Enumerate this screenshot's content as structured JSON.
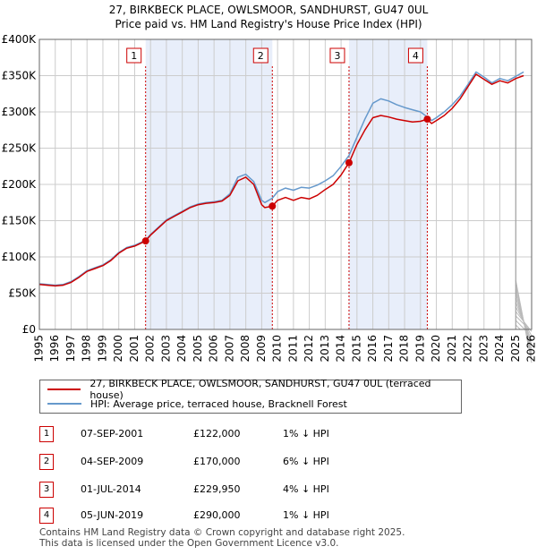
{
  "title_line1": "27, BIRKBECK PLACE, OWLSMOOR, SANDHURST, GU47 0UL",
  "title_line2": "Price paid vs. HM Land Registry's House Price Index (HPI)",
  "legend": {
    "series1": "27, BIRKBECK PLACE, OWLSMOOR, SANDHURST, GU47 0UL (terraced house)",
    "series2": "HPI: Average price, terraced house, Bracknell Forest"
  },
  "colors": {
    "property": "#cc0000",
    "hpi": "#6699cc",
    "shade": "#e8eefa",
    "grid": "#cccccc"
  },
  "transactions": [
    {
      "num": "1",
      "date": "07-SEP-2001",
      "price": "£122,000",
      "hpi": "1% ↓ HPI"
    },
    {
      "num": "2",
      "date": "04-SEP-2009",
      "price": "£170,000",
      "hpi": "6% ↓ HPI"
    },
    {
      "num": "3",
      "date": "01-JUL-2014",
      "price": "£229,950",
      "hpi": "4% ↓ HPI"
    },
    {
      "num": "4",
      "date": "05-JUN-2019",
      "price": "£290,000",
      "hpi": "1% ↓ HPI"
    }
  ],
  "footer_line1": "Contains HM Land Registry data © Crown copyright and database right 2025.",
  "footer_line2": "This data is licensed under the Open Government Licence v3.0.",
  "chart_data": {
    "type": "line",
    "title": "27, BIRKBECK PLACE, OWLSMOOR, SANDHURST, GU47 0UL",
    "subtitle": "Price paid vs. HM Land Registry's House Price Index (HPI)",
    "xlim": [
      1995,
      2026
    ],
    "ylim": [
      0,
      400000
    ],
    "x_ticks": [
      "1995",
      "1996",
      "1997",
      "1998",
      "1999",
      "2000",
      "2001",
      "2002",
      "2003",
      "2004",
      "2005",
      "2006",
      "2007",
      "2008",
      "2009",
      "2010",
      "2011",
      "2012",
      "2013",
      "2014",
      "2015",
      "2016",
      "2017",
      "2018",
      "2019",
      "2020",
      "2021",
      "2022",
      "2023",
      "2024",
      "2025",
      "2026"
    ],
    "y_ticks": [
      {
        "value": 0,
        "label": "£0"
      },
      {
        "value": 50000,
        "label": "£50K"
      },
      {
        "value": 100000,
        "label": "£100K"
      },
      {
        "value": 150000,
        "label": "£150K"
      },
      {
        "value": 200000,
        "label": "£200K"
      },
      {
        "value": 250000,
        "label": "£250K"
      },
      {
        "value": 300000,
        "label": "£300K"
      },
      {
        "value": 350000,
        "label": "£350K"
      },
      {
        "value": 400000,
        "label": "£400K"
      }
    ],
    "shaded_periods": [
      [
        2001.69,
        2009.67
      ],
      [
        2014.5,
        2019.43
      ]
    ],
    "future_hatch_from": 2025.0,
    "sale_markers": [
      {
        "label": "1",
        "x": 2001.69,
        "y": 122000
      },
      {
        "label": "2",
        "x": 2009.67,
        "y": 170000
      },
      {
        "label": "3",
        "x": 2014.5,
        "y": 229950
      },
      {
        "label": "4",
        "x": 2019.43,
        "y": 290000
      }
    ],
    "series": [
      {
        "name": "27, BIRKBECK PLACE, OWLSMOOR, SANDHURST, GU47 0UL (terraced house)",
        "x": [
          1995,
          1995.5,
          1996,
          1996.5,
          1997,
          1997.5,
          1998,
          1998.5,
          1999,
          1999.5,
          2000,
          2000.5,
          2001,
          2001.69,
          2002,
          2002.5,
          2003,
          2003.5,
          2004,
          2004.5,
          2005,
          2005.5,
          2006,
          2006.5,
          2007,
          2007.5,
          2008,
          2008.5,
          2009,
          2009.2,
          2009.67,
          2010,
          2010.5,
          2011,
          2011.5,
          2012,
          2012.5,
          2013,
          2013.5,
          2014,
          2014.5,
          2015,
          2015.5,
          2016,
          2016.5,
          2017,
          2017.5,
          2018,
          2018.5,
          2019,
          2019.43,
          2019.7,
          2020,
          2020.5,
          2021,
          2021.5,
          2022,
          2022.5,
          2023,
          2023.5,
          2024,
          2024.5,
          2025,
          2025.5
        ],
        "values": [
          62000,
          61000,
          60000,
          61000,
          65000,
          72000,
          80000,
          84000,
          88000,
          95000,
          105000,
          112000,
          115000,
          122000,
          130000,
          140000,
          150000,
          156000,
          162000,
          168000,
          172000,
          174000,
          175000,
          177000,
          185000,
          205000,
          210000,
          200000,
          172000,
          168000,
          170000,
          178000,
          182000,
          178000,
          182000,
          180000,
          185000,
          193000,
          200000,
          213000,
          229950,
          255000,
          275000,
          292000,
          295000,
          293000,
          290000,
          288000,
          286000,
          287000,
          290000,
          284000,
          288000,
          295000,
          305000,
          318000,
          335000,
          352000,
          345000,
          338000,
          343000,
          340000,
          346000,
          350000
        ]
      },
      {
        "name": "HPI: Average price, terraced house, Bracknell Forest",
        "x": [
          1995,
          1995.5,
          1996,
          1996.5,
          1997,
          1997.5,
          1998,
          1998.5,
          1999,
          1999.5,
          2000,
          2000.5,
          2001,
          2001.69,
          2002,
          2002.5,
          2003,
          2003.5,
          2004,
          2004.5,
          2005,
          2005.5,
          2006,
          2006.5,
          2007,
          2007.5,
          2008,
          2008.5,
          2009,
          2009.2,
          2009.67,
          2010,
          2010.5,
          2011,
          2011.5,
          2012,
          2012.5,
          2013,
          2013.5,
          2014,
          2014.5,
          2015,
          2015.5,
          2016,
          2016.5,
          2017,
          2017.5,
          2018,
          2018.5,
          2019,
          2019.43,
          2019.7,
          2020,
          2020.5,
          2021,
          2021.5,
          2022,
          2022.5,
          2023,
          2023.5,
          2024,
          2024.5,
          2025,
          2025.5
        ],
        "values": [
          63000,
          62000,
          61000,
          62000,
          66000,
          73000,
          81000,
          85000,
          89000,
          96000,
          106000,
          113000,
          116000,
          123000,
          131000,
          141000,
          151000,
          157000,
          163000,
          169000,
          173000,
          175000,
          176000,
          178000,
          187000,
          210000,
          214000,
          204000,
          178000,
          175000,
          181000,
          190000,
          195000,
          192000,
          196000,
          195000,
          199000,
          205000,
          212000,
          225000,
          240000,
          265000,
          290000,
          312000,
          318000,
          315000,
          310000,
          306000,
          303000,
          300000,
          293000,
          288000,
          292000,
          300000,
          310000,
          322000,
          338000,
          355000,
          348000,
          340000,
          346000,
          343000,
          349000,
          355000
        ]
      }
    ]
  }
}
